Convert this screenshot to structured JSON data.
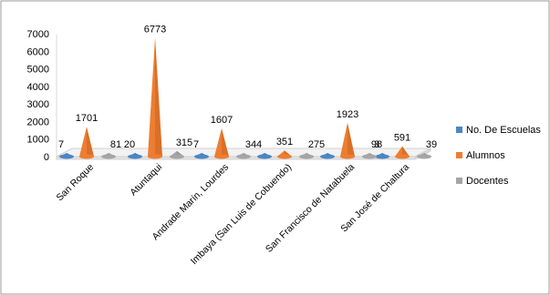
{
  "chart_data": {
    "type": "bar",
    "title": "",
    "xlabel": "",
    "ylabel": "",
    "ylim": [
      0,
      7000
    ],
    "yticks": [
      0,
      1000,
      2000,
      3000,
      4000,
      5000,
      6000,
      7000
    ],
    "grid": false,
    "legend_position": "right",
    "bar_shape": "3d-cone",
    "categories": [
      "San Roque",
      "Atuntaqui",
      "Andrade Marín, Lourdes",
      "Imbaya (San Luis de Cobuendo)",
      "San Francisco de Natabuela",
      "San José de Chaltura"
    ],
    "series": [
      {
        "name": "No. De Escuelas",
        "color": "#4a86c5",
        "values": [
          7,
          20,
          7,
          4,
          5,
          3
        ]
      },
      {
        "name": "Alumnos",
        "color": "#ed7d31",
        "values": [
          1701,
          6773,
          1607,
          351,
          1923,
          591
        ]
      },
      {
        "name": "Docentes",
        "color": "#a5a5a5",
        "values": [
          81,
          315,
          34,
          27,
          98,
          39
        ]
      }
    ]
  }
}
